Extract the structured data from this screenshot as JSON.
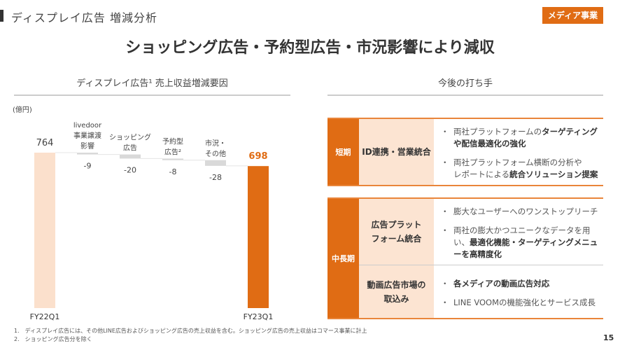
{
  "header": {
    "section_title": "ディスプレイ広告 増減分析",
    "badge": "メディア事業"
  },
  "headline": "ショッピング広告・予約型広告・市況影響により減収",
  "left_title": "ディスプレイ広告¹ 売上収益増減要因",
  "right_title": "今後の打ち手",
  "chart_data": {
    "type": "waterfall",
    "unit_label": "(億円)",
    "categories": [
      "FY22Q1",
      "livedoor\n事業譲渡\n影響",
      "ショッピング\n広告",
      "予約型\n広告²",
      "市況・\nその他",
      "FY23Q1"
    ],
    "values": [
      764,
      -9,
      -20,
      -8,
      -28,
      698
    ],
    "value_labels": [
      "764",
      "-9",
      "-20",
      "-8",
      "-28",
      "698"
    ],
    "ylim": [
      0,
      764
    ],
    "colors": {
      "start": "#fbe0cc",
      "delta": "#d9d9d9",
      "end": "#e06c14"
    }
  },
  "plans": [
    {
      "term": "短期",
      "rows": [
        {
          "theme": "ID連携・営業統合",
          "points": [
            "両社プラットフォームの<b>ターゲティングや配信最適化の強化</b>",
            "両社プラットフォーム横断の分析や<br>レポートによる<b>統合ソリューション提案</b>"
          ]
        }
      ]
    },
    {
      "term": "中長期",
      "rows": [
        {
          "theme": "広告プラット\nフォーム統合",
          "points": [
            "膨大なユーザーへのワンストップリーチ",
            "両社の膨大かつユニークなデータを用い、<b>最適化機能・ターゲティングメニューを高精度化</b>"
          ]
        },
        {
          "theme": "動画広告市場の\n取込み",
          "points": [
            "<b>各メディアの動画広告対応</b>",
            "LINE VOOMの機能強化とサービス成長"
          ]
        }
      ]
    }
  ],
  "footnotes": [
    "1.　ディスプレイ広告には、その他LINE広告およびショッピング広告の売上収益を含む。ショッピング広告の売上収益はコマース事業に計上",
    "2.　ショッピング広告分を除く"
  ],
  "page_number": "15",
  "colors": {
    "accent": "#e06c14",
    "light": "#fce4d2"
  }
}
